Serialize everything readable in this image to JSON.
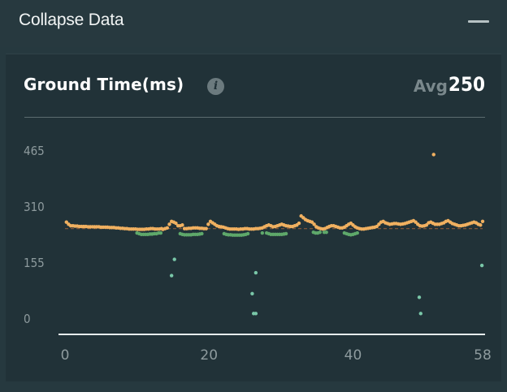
{
  "header": {
    "title": "Collapse Data"
  },
  "card": {
    "title": "Ground Time(ms)",
    "info_icon": "info-icon",
    "avg_label": "Avg",
    "avg_value": "250"
  },
  "colors": {
    "background": "#26393f",
    "card": "#213238",
    "orange": "#f0b060",
    "green": "#5ea86a",
    "teal": "#79c7a8",
    "average_line": "#8a5a3a"
  },
  "chart_data": {
    "type": "scatter",
    "title": "Ground Time(ms)",
    "xlim": [
      0,
      58
    ],
    "ylim": [
      0,
      465
    ],
    "x_ticks": [
      0,
      20,
      40,
      58
    ],
    "y_ticks": [
      0,
      155,
      310,
      465
    ],
    "x_tick_labels": [
      "0",
      "20",
      "40",
      "58"
    ],
    "y_tick_labels": [
      "0",
      "155",
      "310",
      "465"
    ],
    "average": 250,
    "series": [
      {
        "color": "#f0b060",
        "points": [
          [
            0.2,
            268
          ],
          [
            0.5,
            262
          ],
          [
            0.8,
            258
          ],
          [
            1.1,
            258
          ],
          [
            1.4,
            257
          ],
          [
            1.7,
            257
          ],
          [
            2.0,
            256
          ],
          [
            2.3,
            256
          ],
          [
            2.6,
            256
          ],
          [
            2.9,
            256
          ],
          [
            3.2,
            255
          ],
          [
            3.5,
            255
          ],
          [
            3.8,
            255
          ],
          [
            4.1,
            255
          ],
          [
            4.4,
            255
          ],
          [
            4.7,
            255
          ],
          [
            5.0,
            254
          ],
          [
            5.3,
            254
          ],
          [
            5.6,
            254
          ],
          [
            5.9,
            254
          ],
          [
            6.2,
            253
          ],
          [
            6.5,
            253
          ],
          [
            6.8,
            253
          ],
          [
            7.1,
            252
          ],
          [
            7.4,
            252
          ],
          [
            7.7,
            251
          ],
          [
            8.0,
            251
          ],
          [
            8.3,
            250
          ],
          [
            8.6,
            250
          ],
          [
            8.9,
            249
          ],
          [
            9.2,
            249
          ],
          [
            9.5,
            249
          ],
          [
            9.8,
            249
          ],
          [
            10.1,
            248
          ],
          [
            10.4,
            248
          ],
          [
            10.7,
            248
          ],
          [
            11.0,
            248
          ],
          [
            11.3,
            249
          ],
          [
            11.6,
            249
          ],
          [
            11.9,
            250
          ],
          [
            12.2,
            250
          ],
          [
            12.5,
            249
          ],
          [
            12.8,
            249
          ],
          [
            13.1,
            249
          ],
          [
            13.4,
            250
          ],
          [
            13.6,
            248
          ],
          [
            13.9,
            250
          ],
          [
            14.2,
            252
          ],
          [
            14.5,
            262
          ],
          [
            14.8,
            270
          ],
          [
            15.1,
            268
          ],
          [
            15.4,
            265
          ],
          [
            15.7,
            258
          ],
          [
            16.0,
            258
          ],
          [
            16.3,
            260
          ],
          [
            16.6,
            250
          ],
          [
            16.9,
            250
          ],
          [
            17.2,
            251
          ],
          [
            17.5,
            251
          ],
          [
            17.8,
            252
          ],
          [
            18.1,
            252
          ],
          [
            18.4,
            252
          ],
          [
            18.7,
            251
          ],
          [
            19.0,
            251
          ],
          [
            19.3,
            250
          ],
          [
            19.6,
            250
          ],
          [
            19.9,
            262
          ],
          [
            20.2,
            270
          ],
          [
            20.5,
            266
          ],
          [
            20.8,
            262
          ],
          [
            21.1,
            258
          ],
          [
            21.4,
            256
          ],
          [
            21.7,
            255
          ],
          [
            22.0,
            254
          ],
          [
            22.3,
            252
          ],
          [
            22.6,
            250
          ],
          [
            22.9,
            249
          ],
          [
            23.2,
            249
          ],
          [
            23.5,
            249
          ],
          [
            23.8,
            249
          ],
          [
            24.1,
            248
          ],
          [
            24.4,
            249
          ],
          [
            24.7,
            249
          ],
          [
            25.0,
            250
          ],
          [
            25.3,
            250
          ],
          [
            25.6,
            249
          ],
          [
            25.9,
            249
          ],
          [
            26.2,
            249
          ],
          [
            26.5,
            250
          ],
          [
            26.8,
            250
          ],
          [
            27.1,
            251
          ],
          [
            27.4,
            252
          ],
          [
            27.7,
            255
          ],
          [
            28.0,
            258
          ],
          [
            28.3,
            260
          ],
          [
            28.6,
            258
          ],
          [
            28.9,
            255
          ],
          [
            29.2,
            256
          ],
          [
            29.5,
            258
          ],
          [
            29.8,
            260
          ],
          [
            30.1,
            262
          ],
          [
            30.4,
            260
          ],
          [
            30.7,
            258
          ],
          [
            31.0,
            257
          ],
          [
            31.3,
            256
          ],
          [
            31.6,
            256
          ],
          [
            31.9,
            258
          ],
          [
            32.2,
            260
          ],
          [
            32.5,
            265
          ],
          [
            32.8,
            285
          ],
          [
            33.1,
            280
          ],
          [
            33.4,
            275
          ],
          [
            33.7,
            272
          ],
          [
            34.0,
            270
          ],
          [
            34.3,
            268
          ],
          [
            34.6,
            262
          ],
          [
            34.9,
            255
          ],
          [
            35.2,
            252
          ],
          [
            35.5,
            250
          ],
          [
            35.8,
            249
          ],
          [
            36.1,
            250
          ],
          [
            36.4,
            253
          ],
          [
            36.7,
            256
          ],
          [
            37.0,
            258
          ],
          [
            37.3,
            258
          ],
          [
            37.6,
            256
          ],
          [
            37.9,
            254
          ],
          [
            38.2,
            252
          ],
          [
            38.5,
            252
          ],
          [
            38.8,
            254
          ],
          [
            39.1,
            258
          ],
          [
            39.4,
            262
          ],
          [
            39.7,
            265
          ],
          [
            40.0,
            260
          ],
          [
            40.3,
            255
          ],
          [
            40.6,
            252
          ],
          [
            40.9,
            250
          ],
          [
            41.2,
            249
          ],
          [
            41.5,
            249
          ],
          [
            41.8,
            250
          ],
          [
            42.1,
            251
          ],
          [
            42.4,
            252
          ],
          [
            42.7,
            253
          ],
          [
            43.0,
            254
          ],
          [
            43.3,
            256
          ],
          [
            43.6,
            262
          ],
          [
            43.9,
            268
          ],
          [
            44.2,
            270
          ],
          [
            44.5,
            266
          ],
          [
            44.8,
            264
          ],
          [
            45.1,
            262
          ],
          [
            45.4,
            263
          ],
          [
            45.7,
            264
          ],
          [
            46.0,
            264
          ],
          [
            46.3,
            263
          ],
          [
            46.6,
            262
          ],
          [
            46.9,
            263
          ],
          [
            47.2,
            264
          ],
          [
            47.5,
            266
          ],
          [
            47.8,
            268
          ],
          [
            48.1,
            270
          ],
          [
            48.4,
            272
          ],
          [
            48.7,
            268
          ],
          [
            49.0,
            262
          ],
          [
            49.3,
            258
          ],
          [
            49.6,
            257
          ],
          [
            49.9,
            258
          ],
          [
            50.2,
            260
          ],
          [
            50.5,
            266
          ],
          [
            50.8,
            268
          ],
          [
            51.1,
            265
          ],
          [
            51.4,
            262
          ],
          [
            51.7,
            262
          ],
          [
            52.0,
            262
          ],
          [
            52.3,
            264
          ],
          [
            52.6,
            266
          ],
          [
            52.9,
            270
          ],
          [
            53.2,
            272
          ],
          [
            53.5,
            268
          ],
          [
            53.8,
            264
          ],
          [
            54.1,
            262
          ],
          [
            54.4,
            260
          ],
          [
            54.7,
            258
          ],
          [
            55.0,
            258
          ],
          [
            55.3,
            259
          ],
          [
            55.6,
            260
          ],
          [
            55.9,
            262
          ],
          [
            56.2,
            264
          ],
          [
            56.5,
            266
          ],
          [
            56.8,
            268
          ],
          [
            57.1,
            266
          ],
          [
            57.4,
            262
          ],
          [
            57.7,
            260
          ],
          [
            58.0,
            270
          ],
          [
            51.2,
            455
          ]
        ]
      },
      {
        "color": "#5ea86a",
        "points": [
          [
            10.0,
            238
          ],
          [
            10.3,
            236
          ],
          [
            10.6,
            234
          ],
          [
            10.9,
            234
          ],
          [
            11.2,
            234
          ],
          [
            11.5,
            234
          ],
          [
            11.8,
            235
          ],
          [
            12.1,
            235
          ],
          [
            12.4,
            236
          ],
          [
            12.7,
            236
          ],
          [
            13.0,
            238
          ],
          [
            13.3,
            238
          ],
          [
            16.0,
            236
          ],
          [
            16.3,
            234
          ],
          [
            16.6,
            233
          ],
          [
            16.9,
            233
          ],
          [
            17.2,
            233
          ],
          [
            17.5,
            233
          ],
          [
            17.8,
            234
          ],
          [
            18.1,
            234
          ],
          [
            18.4,
            234
          ],
          [
            18.7,
            235
          ],
          [
            19.0,
            236
          ],
          [
            22.1,
            236
          ],
          [
            22.4,
            234
          ],
          [
            22.7,
            233
          ],
          [
            23.0,
            233
          ],
          [
            23.3,
            232
          ],
          [
            23.6,
            232
          ],
          [
            23.9,
            232
          ],
          [
            24.2,
            232
          ],
          [
            24.5,
            232
          ],
          [
            24.8,
            233
          ],
          [
            25.1,
            234
          ],
          [
            25.4,
            236
          ],
          [
            27.4,
            238
          ],
          [
            28.0,
            238
          ],
          [
            28.3,
            236
          ],
          [
            28.6,
            234
          ],
          [
            28.9,
            234
          ],
          [
            29.2,
            234
          ],
          [
            29.5,
            234
          ],
          [
            29.8,
            234
          ],
          [
            30.1,
            234
          ],
          [
            30.4,
            235
          ],
          [
            30.7,
            236
          ],
          [
            34.5,
            240
          ],
          [
            34.8,
            238
          ],
          [
            35.1,
            238
          ],
          [
            35.4,
            240
          ],
          [
            36.0,
            240
          ],
          [
            36.3,
            240
          ],
          [
            38.8,
            238
          ],
          [
            39.1,
            236
          ],
          [
            39.4,
            234
          ],
          [
            39.7,
            233
          ],
          [
            40.0,
            234
          ],
          [
            40.3,
            236
          ],
          [
            40.6,
            238
          ]
        ]
      },
      {
        "color": "#79c7a8",
        "points": [
          [
            15.2,
            165
          ],
          [
            14.8,
            120
          ],
          [
            26.5,
            128
          ],
          [
            26.0,
            70
          ],
          [
            26.2,
            15
          ],
          [
            26.5,
            15
          ],
          [
            49.2,
            60
          ],
          [
            49.4,
            15
          ],
          [
            57.9,
            148
          ]
        ]
      }
    ]
  }
}
